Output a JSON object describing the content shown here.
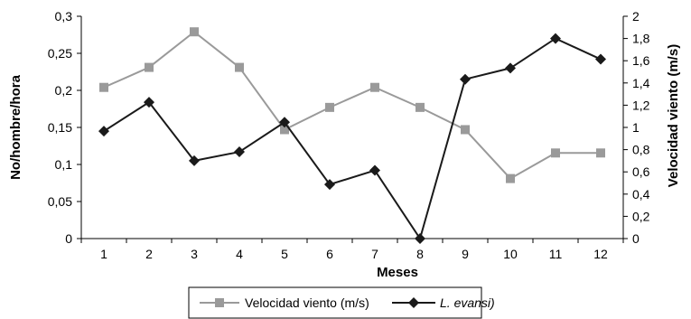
{
  "chart_data": {
    "type": "line",
    "title": "",
    "xlabel": "Meses",
    "ylabel": "No/hombre/hora",
    "y2label": "Velocidad viento (m/s)",
    "categories": [
      "1",
      "2",
      "3",
      "4",
      "5",
      "6",
      "7",
      "8",
      "9",
      "10",
      "11",
      "12"
    ],
    "ylim": [
      0,
      0.3
    ],
    "y2lim": [
      0,
      2
    ],
    "yticks": [
      "0",
      "0,05",
      "0,1",
      "0,15",
      "0,2",
      "0,25",
      "0,3"
    ],
    "y2ticks": [
      "0",
      "0,2",
      "0,4",
      "0,6",
      "0,8",
      "1",
      "1,2",
      "1,4",
      "1,6",
      "1,8",
      "2"
    ],
    "grid": false,
    "legend_position": "bottom",
    "series": [
      {
        "name": "Velocidad viento (m/s)",
        "axis": "right",
        "marker": "square",
        "color": "#9a9a9a",
        "values": [
          1.36,
          1.54,
          1.86,
          1.54,
          0.98,
          1.18,
          1.36,
          1.18,
          0.98,
          0.54,
          0.77,
          0.77
        ]
      },
      {
        "name": "L. evansi)",
        "name_style": "italic",
        "axis": "left",
        "marker": "diamond",
        "color": "#1a1a1a",
        "values": [
          0.145,
          0.184,
          0.105,
          0.117,
          0.157,
          0.073,
          0.092,
          0.0,
          0.215,
          0.23,
          0.27,
          0.242
        ]
      }
    ]
  }
}
